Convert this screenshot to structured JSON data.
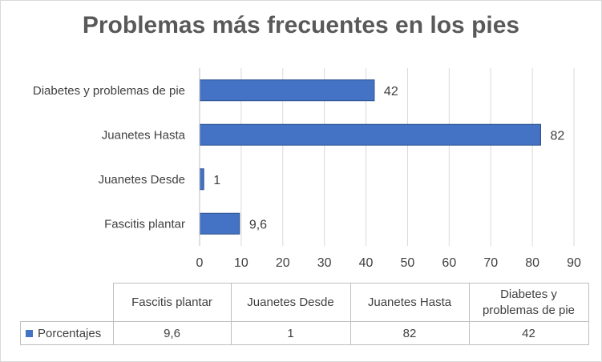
{
  "chart_data": {
    "type": "bar",
    "orientation": "horizontal",
    "title": "Problemas más frecuentes en los pies",
    "categories": [
      "Fascitis plantar",
      "Juanetes Desde",
      "Juanetes Hasta",
      "Diabetes y problemas de pie"
    ],
    "table_headers": [
      "Fascitis plantar",
      "Juanetes Desde",
      "Juanetes Hasta",
      "Diabetes y\nproblemas de pie"
    ],
    "series": [
      {
        "name": "Porcentajes",
        "values": [
          9.6,
          1,
          82,
          42
        ],
        "labels": [
          "9,6",
          "1",
          "82",
          "42"
        ]
      }
    ],
    "xlim": [
      0,
      90
    ],
    "xticks": [
      "0",
      "10",
      "20",
      "30",
      "40",
      "50",
      "60",
      "70",
      "80",
      "90"
    ],
    "grid": true,
    "legend": "data-table"
  },
  "colors": {
    "bar": "#4472c4",
    "grid": "#d9d9d9",
    "text": "#404040"
  }
}
